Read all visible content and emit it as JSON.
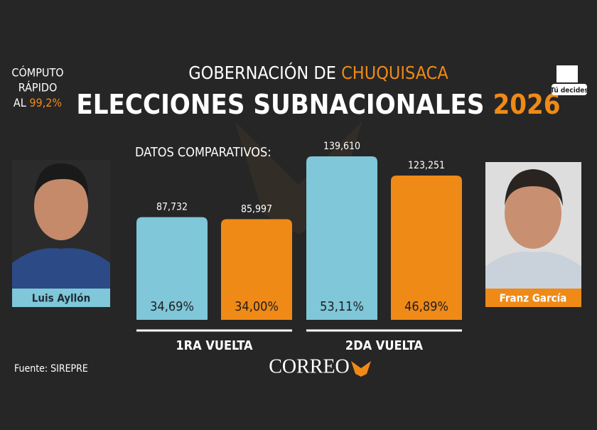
{
  "header": {
    "quick_count": [
      "CÓMPUTO",
      "RÁPIDO"
    ],
    "quick_count_prefix": "AL",
    "quick_count_value": "99,2%",
    "subtitle": "GOBERNACIÓN DE",
    "subtitle_highlight": "CHUQUISACA",
    "title": "ELECCIONES SUBNACIONALES",
    "title_year": "2026",
    "brand": "Tú decides"
  },
  "chart_data": {
    "type": "bar",
    "title": "DATOS COMPARATIVOS:",
    "categories": [
      "1RA VUELTA",
      "2DA VUELTA"
    ],
    "series": [
      {
        "name": "Luis Ayllón",
        "color": "#7fc7d9",
        "values": [
          87732,
          139610
        ],
        "value_labels": [
          "87,732",
          "139,610"
        ],
        "share_labels": [
          "34,69%",
          "53,11%"
        ]
      },
      {
        "name": "Franz García",
        "color": "#ef8a17",
        "values": [
          85997,
          123251
        ],
        "value_labels": [
          "85,997",
          "123,251"
        ],
        "share_labels": [
          "34,00%",
          "46,89%"
        ]
      }
    ]
  },
  "footer": {
    "source": "Fuente: SIREPRE",
    "logo": "CORREO"
  }
}
